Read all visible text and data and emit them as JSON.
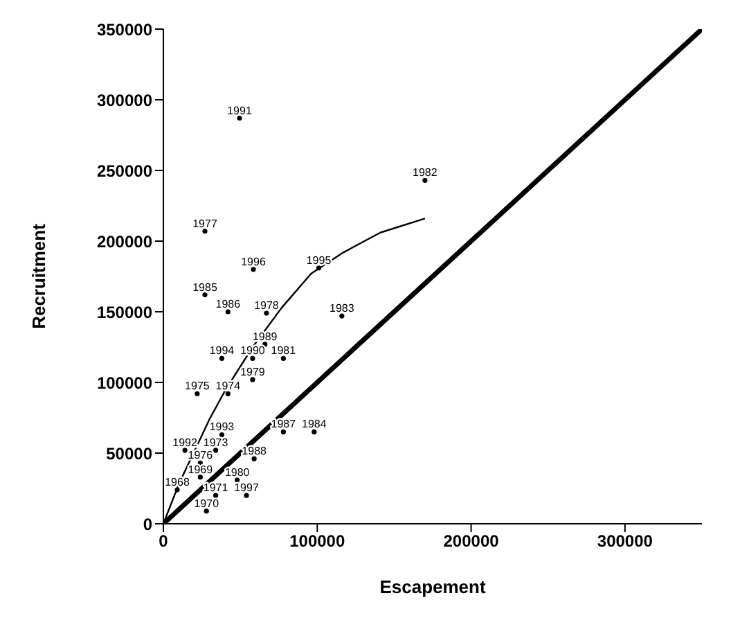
{
  "chart_data": {
    "type": "scatter",
    "xlabel": "Escapement",
    "ylabel": "Recruitment",
    "xlim": [
      0,
      350000
    ],
    "xticks": [
      0,
      100000,
      200000,
      300000
    ],
    "ylim": [
      0,
      350000
    ],
    "yticks": [
      0,
      50000,
      100000,
      150000,
      200000,
      250000,
      300000,
      350000
    ],
    "grid": false,
    "legend": false,
    "line_style": "solid",
    "series": [
      {
        "marker": "circle",
        "color": "#000000",
        "x": [
          49500,
          170000,
          27000,
          58500,
          101000,
          27000,
          42000,
          67000,
          116000,
          66000,
          38000,
          58000,
          78000,
          58000,
          22000,
          42000,
          38000,
          14000,
          34000,
          78000,
          98000,
          59000,
          24000,
          9000,
          24000,
          48000,
          34000,
          54000,
          28000
        ],
        "values": [
          287000,
          243000,
          207000,
          180000,
          181000,
          162000,
          150000,
          149000,
          147000,
          127000,
          117000,
          117000,
          117000,
          102000,
          92000,
          92000,
          63000,
          52000,
          52000,
          65000,
          65000,
          46000,
          43000,
          24000,
          33000,
          31000,
          20000,
          20000,
          9000
        ]
      },
      {
        "type": "line",
        "marker": "none",
        "color": "#000000",
        "x": [
          0,
          10000,
          20000,
          30000,
          40000,
          58000,
          77000,
          96000,
          117000,
          141000,
          170000
        ],
        "values": [
          0,
          28000,
          51000,
          74000,
          94000,
          125000,
          153000,
          177000,
          192000,
          206000,
          216000
        ]
      },
      {
        "type": "line",
        "marker": "none",
        "color": "#000000",
        "x": [
          0,
          350000
        ],
        "values": [
          0,
          350000
        ]
      }
    ],
    "annotations": [
      {
        "text": "1991",
        "x": 49500,
        "y": 287000
      },
      {
        "text": "1982",
        "x": 170000,
        "y": 243000
      },
      {
        "text": "1977",
        "x": 27000,
        "y": 207000
      },
      {
        "text": "1996",
        "x": 58500,
        "y": 180000
      },
      {
        "text": "1995",
        "x": 101000,
        "y": 181000
      },
      {
        "text": "1985",
        "x": 27000,
        "y": 162000
      },
      {
        "text": "1986",
        "x": 42000,
        "y": 150000
      },
      {
        "text": "1978",
        "x": 67000,
        "y": 149000
      },
      {
        "text": "1983",
        "x": 116000,
        "y": 147000
      },
      {
        "text": "1989",
        "x": 66000,
        "y": 127000
      },
      {
        "text": "1994",
        "x": 38000,
        "y": 117000
      },
      {
        "text": "1990",
        "x": 58000,
        "y": 117000
      },
      {
        "text": "1981",
        "x": 78000,
        "y": 117000
      },
      {
        "text": "1979",
        "x": 58000,
        "y": 102000
      },
      {
        "text": "1975",
        "x": 22000,
        "y": 92000
      },
      {
        "text": "1974",
        "x": 42000,
        "y": 92000
      },
      {
        "text": "1993",
        "x": 38000,
        "y": 63000
      },
      {
        "text": "1992",
        "x": 14000,
        "y": 52000
      },
      {
        "text": "1973",
        "x": 34000,
        "y": 52000
      },
      {
        "text": "1987",
        "x": 78000,
        "y": 65000
      },
      {
        "text": "1984",
        "x": 98000,
        "y": 65000
      },
      {
        "text": "1988",
        "x": 59000,
        "y": 46000
      },
      {
        "text": "1976",
        "x": 24000,
        "y": 43000
      },
      {
        "text": "1968",
        "x": 9000,
        "y": 24000
      },
      {
        "text": "1969",
        "x": 24000,
        "y": 33000
      },
      {
        "text": "1980",
        "x": 48000,
        "y": 31000
      },
      {
        "text": "1971",
        "x": 34000,
        "y": 20000
      },
      {
        "text": "1997",
        "x": 54000,
        "y": 20000
      },
      {
        "text": "1970",
        "x": 28000,
        "y": 9000
      }
    ]
  }
}
